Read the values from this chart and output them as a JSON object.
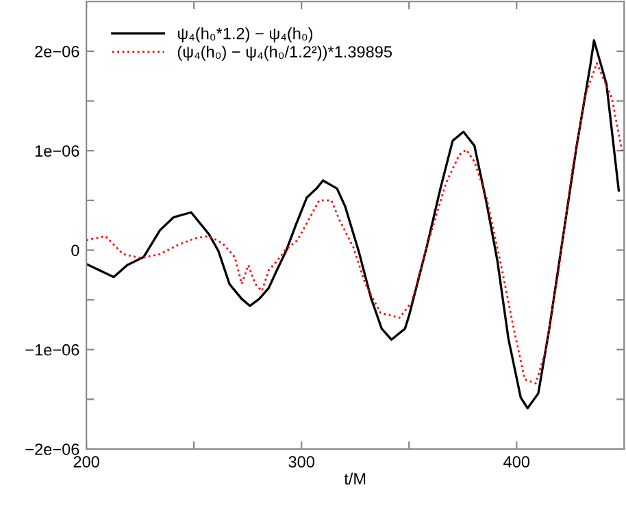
{
  "chart_data": {
    "type": "line",
    "xlabel": "t/M",
    "xlim": [
      200,
      450
    ],
    "xticks": [
      200,
      {
        "value": 250,
        "label": null
      },
      300,
      {
        "value": 350,
        "label": null
      },
      400
    ],
    "ylim": [
      -2e-06,
      2.5e-06
    ],
    "yticks": [
      {
        "value": -2e-06,
        "label": "−2e−06"
      },
      {
        "value": -1.5e-06,
        "label": null
      },
      {
        "value": -1e-06,
        "label": "−1e−06"
      },
      {
        "value": -5e-07,
        "label": null
      },
      0,
      {
        "value": 5e-07,
        "label": null
      },
      {
        "value": 1e-06,
        "label": "1e−06"
      },
      {
        "value": 1.5e-06,
        "label": null
      },
      {
        "value": 2e-06,
        "label": "2e−06"
      }
    ],
    "grid": false,
    "legend": "top left",
    "series": [
      {
        "name": "ψ₄(h₀*1.2) − ψ₄(h₀)",
        "color": "#000000",
        "line_style": "solid",
        "x": [
          200,
          212.7,
          219,
          226.6,
          234.2,
          240.5,
          248.7,
          253.2,
          257,
          261.4,
          266.5,
          272.2,
          276,
          280.4,
          284.8,
          288.6,
          293,
          297.5,
          302.5,
          307,
          310,
          316.5,
          320.3,
          326.6,
          332.3,
          337.3,
          341.8,
          348.1,
          350,
          358.2,
          364.6,
          370.3,
          375.3,
          380.4,
          386,
          391.1,
          396.2,
          401.9,
          405.1,
          410.1,
          415.2,
          421.5,
          427.8,
          434.2,
          436,
          441.8,
          447.5
        ],
        "values": [
          -1.4e-07,
          -2.7e-07,
          -1.5e-07,
          -7e-08,
          2e-07,
          3.3e-07,
          3.8e-07,
          2.6e-07,
          1.6e-07,
          -1e-08,
          -3.4e-07,
          -4.9e-07,
          -5.6e-07,
          -4.9e-07,
          -3.8e-07,
          -2e-07,
          0,
          2.6e-07,
          5.3e-07,
          6.2e-07,
          7e-07,
          6.2e-07,
          4.4e-07,
          -1e-08,
          -4.8e-07,
          -7.9e-07,
          -9e-07,
          -7.9e-07,
          -6.6e-07,
          3e-08,
          6.2e-07,
          1.1e-06,
          1.19e-06,
          1.05e-06,
          4.8e-07,
          -1.1e-07,
          -8.9e-07,
          -1.48e-06,
          -1.59e-06,
          -1.44e-06,
          -7.9e-07,
          1.2e-07,
          1.03e-06,
          1.85e-06,
          2.11e-06,
          1.67e-06,
          6e-07
        ]
      },
      {
        "name": "(ψ₄(h₀) − ψ₄(h₀/1.2²))*1.39895",
        "color": "#ff0000",
        "line_style": "dotted",
        "x": [
          200,
          208.9,
          217.1,
          225.3,
          234.2,
          242.4,
          250.6,
          256.9,
          263.3,
          269,
          272.2,
          275.3,
          278.5,
          281.6,
          284.8,
          288.6,
          292.4,
          298.1,
          303.2,
          308.2,
          313.9,
          317.7,
          324.1,
          329.7,
          336.7,
          345.6,
          351.3,
          358.2,
          367.1,
          373.4,
          376.6,
          380.4,
          386,
          392.4,
          398.7,
          403.8,
          408.9,
          413.3,
          419.6,
          425.9,
          432.3,
          437.3,
          444.3,
          449
        ],
        "values": [
          1e-07,
          1.4e-07,
          -4e-08,
          -8e-08,
          -4e-08,
          5e-08,
          1.2e-07,
          1.4e-07,
          7e-08,
          -7e-08,
          -3.4e-07,
          -1.5e-07,
          -3.4e-07,
          -4.1e-07,
          -2e-07,
          -1.1e-07,
          0,
          1e-07,
          3e-07,
          5e-07,
          5e-07,
          3e-07,
          3e-08,
          -3.4e-07,
          -6.3e-07,
          -6.8e-07,
          -5.2e-07,
          3e-08,
          6.7e-07,
          9.6e-07,
          1.01e-06,
          8.9e-07,
          5.3e-07,
          -1.1e-07,
          -7.9e-07,
          -1.3e-06,
          -1.34e-06,
          -1.03e-06,
          -2e-07,
          8.1e-07,
          1.58e-06,
          1.88e-06,
          1.53e-06,
          1e-06
        ]
      }
    ]
  }
}
